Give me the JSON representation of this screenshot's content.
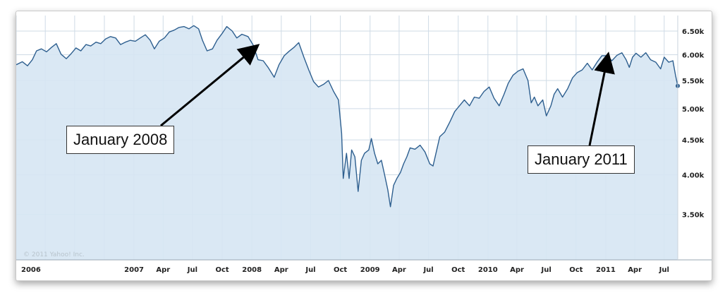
{
  "chart_data": {
    "type": "area",
    "title": "",
    "xlabel": "",
    "ylabel": "",
    "x_ticks": [
      "2006",
      "2007",
      "Apr",
      "Jul",
      "Oct",
      "2008",
      "Apr",
      "Jul",
      "Oct",
      "2009",
      "Apr",
      "Jul",
      "Oct",
      "2010",
      "Apr",
      "Jul",
      "Oct",
      "2011",
      "Apr",
      "Jul"
    ],
    "y_ticks": [
      "3.50k",
      "4.00k",
      "4.50k",
      "5.00k",
      "5.50k",
      "6.00k",
      "6.50k"
    ],
    "y_scale": "log",
    "ylim": [
      3000,
      6850
    ],
    "xlim": [
      "2006-01-01",
      "2011-08-12"
    ],
    "grid": true,
    "copyright": "© 2011 Yahoo! Inc.",
    "colors": {
      "line": "#2e5f8f",
      "fill": "#d6e6f3",
      "grid": "#cfdbe6"
    },
    "series": [
      {
        "points": [
          [
            "2006-01-01",
            5800
          ],
          [
            "2006-01-20",
            5860
          ],
          [
            "2006-02-05",
            5780
          ],
          [
            "2006-02-20",
            5900
          ],
          [
            "2006-03-05",
            6080
          ],
          [
            "2006-03-20",
            6120
          ],
          [
            "2006-04-05",
            6060
          ],
          [
            "2006-04-20",
            6150
          ],
          [
            "2006-05-05",
            6230
          ],
          [
            "2006-05-20",
            6010
          ],
          [
            "2006-06-05",
            5920
          ],
          [
            "2006-06-20",
            6020
          ],
          [
            "2006-07-05",
            6140
          ],
          [
            "2006-07-20",
            6080
          ],
          [
            "2006-08-05",
            6210
          ],
          [
            "2006-08-20",
            6180
          ],
          [
            "2006-09-05",
            6260
          ],
          [
            "2006-09-20",
            6230
          ],
          [
            "2006-10-05",
            6330
          ],
          [
            "2006-10-20",
            6380
          ],
          [
            "2006-11-05",
            6350
          ],
          [
            "2006-11-20",
            6210
          ],
          [
            "2006-12-05",
            6260
          ],
          [
            "2006-12-20",
            6300
          ],
          [
            "2007-01-05",
            6280
          ],
          [
            "2007-01-20",
            6350
          ],
          [
            "2007-02-05",
            6420
          ],
          [
            "2007-02-20",
            6300
          ],
          [
            "2007-03-05",
            6120
          ],
          [
            "2007-03-20",
            6280
          ],
          [
            "2007-04-05",
            6350
          ],
          [
            "2007-04-20",
            6480
          ],
          [
            "2007-05-05",
            6520
          ],
          [
            "2007-05-20",
            6580
          ],
          [
            "2007-06-05",
            6600
          ],
          [
            "2007-06-20",
            6550
          ],
          [
            "2007-07-05",
            6620
          ],
          [
            "2007-07-20",
            6550
          ],
          [
            "2007-08-01",
            6300
          ],
          [
            "2007-08-15",
            6080
          ],
          [
            "2007-09-01",
            6120
          ],
          [
            "2007-09-15",
            6300
          ],
          [
            "2007-10-01",
            6450
          ],
          [
            "2007-10-15",
            6600
          ],
          [
            "2007-11-01",
            6500
          ],
          [
            "2007-11-15",
            6350
          ],
          [
            "2007-12-01",
            6430
          ],
          [
            "2007-12-20",
            6380
          ],
          [
            "2008-01-05",
            6200
          ],
          [
            "2008-01-20",
            5900
          ],
          [
            "2008-02-05",
            5880
          ],
          [
            "2008-02-20",
            5750
          ],
          [
            "2008-03-10",
            5560
          ],
          [
            "2008-03-25",
            5800
          ],
          [
            "2008-04-10",
            5980
          ],
          [
            "2008-04-25",
            6070
          ],
          [
            "2008-05-10",
            6150
          ],
          [
            "2008-05-25",
            6250
          ],
          [
            "2008-06-10",
            5950
          ],
          [
            "2008-06-25",
            5700
          ],
          [
            "2008-07-10",
            5480
          ],
          [
            "2008-07-25",
            5380
          ],
          [
            "2008-08-10",
            5430
          ],
          [
            "2008-08-25",
            5500
          ],
          [
            "2008-09-10",
            5300
          ],
          [
            "2008-09-25",
            5150
          ],
          [
            "2008-10-05",
            4600
          ],
          [
            "2008-10-10",
            3950
          ],
          [
            "2008-10-20",
            4300
          ],
          [
            "2008-10-28",
            3950
          ],
          [
            "2008-11-05",
            4350
          ],
          [
            "2008-11-15",
            4250
          ],
          [
            "2008-11-25",
            3780
          ],
          [
            "2008-12-05",
            4200
          ],
          [
            "2008-12-15",
            4300
          ],
          [
            "2008-12-28",
            4350
          ],
          [
            "2009-01-05",
            4520
          ],
          [
            "2009-01-15",
            4300
          ],
          [
            "2009-01-25",
            4150
          ],
          [
            "2009-02-05",
            4200
          ],
          [
            "2009-02-15",
            4000
          ],
          [
            "2009-02-25",
            3800
          ],
          [
            "2009-03-05",
            3590
          ],
          [
            "2009-03-15",
            3860
          ],
          [
            "2009-03-25",
            3950
          ],
          [
            "2009-04-05",
            4030
          ],
          [
            "2009-04-15",
            4150
          ],
          [
            "2009-04-25",
            4250
          ],
          [
            "2009-05-05",
            4380
          ],
          [
            "2009-05-20",
            4360
          ],
          [
            "2009-06-05",
            4420
          ],
          [
            "2009-06-20",
            4320
          ],
          [
            "2009-07-05",
            4150
          ],
          [
            "2009-07-15",
            4120
          ],
          [
            "2009-07-25",
            4320
          ],
          [
            "2009-08-05",
            4550
          ],
          [
            "2009-08-20",
            4620
          ],
          [
            "2009-09-05",
            4780
          ],
          [
            "2009-09-20",
            4950
          ],
          [
            "2009-10-05",
            5050
          ],
          [
            "2009-10-20",
            5150
          ],
          [
            "2009-11-05",
            5050
          ],
          [
            "2009-11-20",
            5200
          ],
          [
            "2009-12-05",
            5180
          ],
          [
            "2009-12-20",
            5300
          ],
          [
            "2010-01-05",
            5380
          ],
          [
            "2010-01-20",
            5180
          ],
          [
            "2010-02-05",
            5050
          ],
          [
            "2010-02-20",
            5250
          ],
          [
            "2010-03-05",
            5450
          ],
          [
            "2010-03-20",
            5600
          ],
          [
            "2010-04-05",
            5680
          ],
          [
            "2010-04-20",
            5720
          ],
          [
            "2010-05-05",
            5500
          ],
          [
            "2010-05-15",
            5100
          ],
          [
            "2010-05-25",
            5200
          ],
          [
            "2010-06-05",
            5050
          ],
          [
            "2010-06-20",
            5150
          ],
          [
            "2010-07-01",
            4880
          ],
          [
            "2010-07-15",
            5050
          ],
          [
            "2010-07-25",
            5250
          ],
          [
            "2010-08-05",
            5350
          ],
          [
            "2010-08-20",
            5200
          ],
          [
            "2010-09-05",
            5350
          ],
          [
            "2010-09-20",
            5550
          ],
          [
            "2010-10-05",
            5650
          ],
          [
            "2010-10-20",
            5700
          ],
          [
            "2010-11-05",
            5830
          ],
          [
            "2010-11-20",
            5700
          ],
          [
            "2010-12-05",
            5850
          ],
          [
            "2010-12-20",
            5980
          ],
          [
            "2011-01-05",
            5980
          ],
          [
            "2011-01-20",
            5880
          ],
          [
            "2011-02-05",
            5990
          ],
          [
            "2011-02-20",
            6040
          ],
          [
            "2011-03-05",
            5900
          ],
          [
            "2011-03-15",
            5750
          ],
          [
            "2011-03-25",
            5950
          ],
          [
            "2011-04-05",
            6030
          ],
          [
            "2011-04-20",
            5950
          ],
          [
            "2011-05-05",
            6040
          ],
          [
            "2011-05-20",
            5900
          ],
          [
            "2011-06-05",
            5850
          ],
          [
            "2011-06-20",
            5720
          ],
          [
            "2011-07-01",
            5950
          ],
          [
            "2011-07-15",
            5850
          ],
          [
            "2011-07-28",
            5880
          ],
          [
            "2011-08-05",
            5600
          ],
          [
            "2011-08-12",
            5400
          ]
        ]
      }
    ],
    "annotations": [
      {
        "text": "January 2008",
        "date": "2008-01-05",
        "value": 6200
      },
      {
        "text": "January 2011",
        "date": "2011-01-05",
        "value": 5980
      }
    ]
  }
}
